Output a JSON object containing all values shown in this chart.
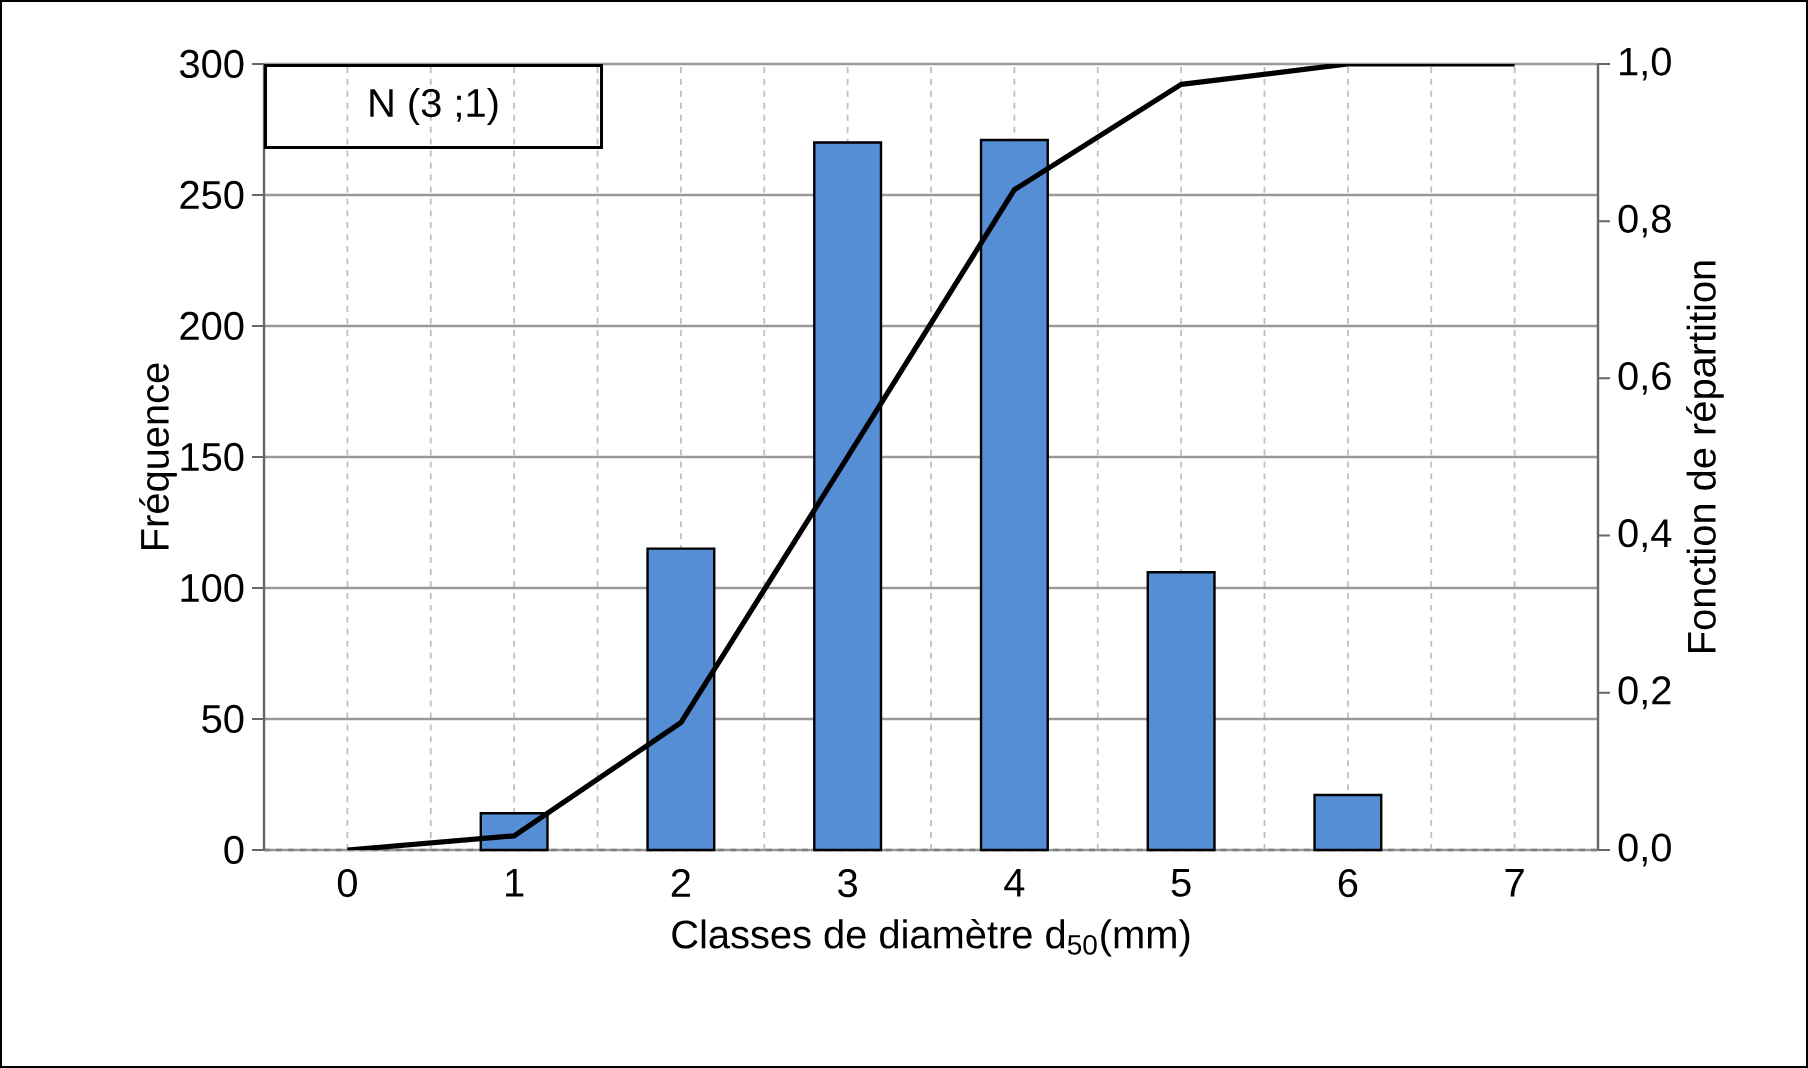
{
  "chart_data": {
    "type": "bar",
    "xlabel": "Classes de diamètre d$_{50}$(mm)",
    "ylabel": "Fréquence",
    "y2label": "Fonction de répartition",
    "x": [
      0,
      1,
      2,
      3,
      4,
      5,
      6,
      7
    ],
    "series": [
      {
        "color": "#558ed5",
        "values": [
          null,
          14,
          115,
          270,
          271,
          106,
          21,
          null
        ]
      },
      {
        "type": "line",
        "axis": "y2",
        "color": "#000000",
        "values": [
          0,
          0.018,
          0.162,
          0.5,
          0.84,
          0.974,
          1.0,
          1.0
        ]
      }
    ],
    "xlim": [
      -0.5,
      7.5
    ],
    "xticks": [
      0,
      1,
      2,
      3,
      4,
      5,
      6,
      7
    ],
    "ylim": [
      0,
      300
    ],
    "yticks": [
      0,
      50,
      100,
      150,
      200,
      250,
      300
    ],
    "y2lim": [
      0,
      1
    ],
    "y2ticks": [
      {
        "value": 0,
        "label": "0,0"
      },
      {
        "value": 0.2,
        "label": "0,2"
      },
      {
        "value": 0.4,
        "label": "0,4"
      },
      {
        "value": 0.6,
        "label": "0,6"
      },
      {
        "value": 0.8,
        "label": "0,8"
      },
      {
        "value": 1,
        "label": "1,0"
      }
    ],
    "grid": true,
    "annotations": [
      "N (3 ;1)"
    ]
  }
}
